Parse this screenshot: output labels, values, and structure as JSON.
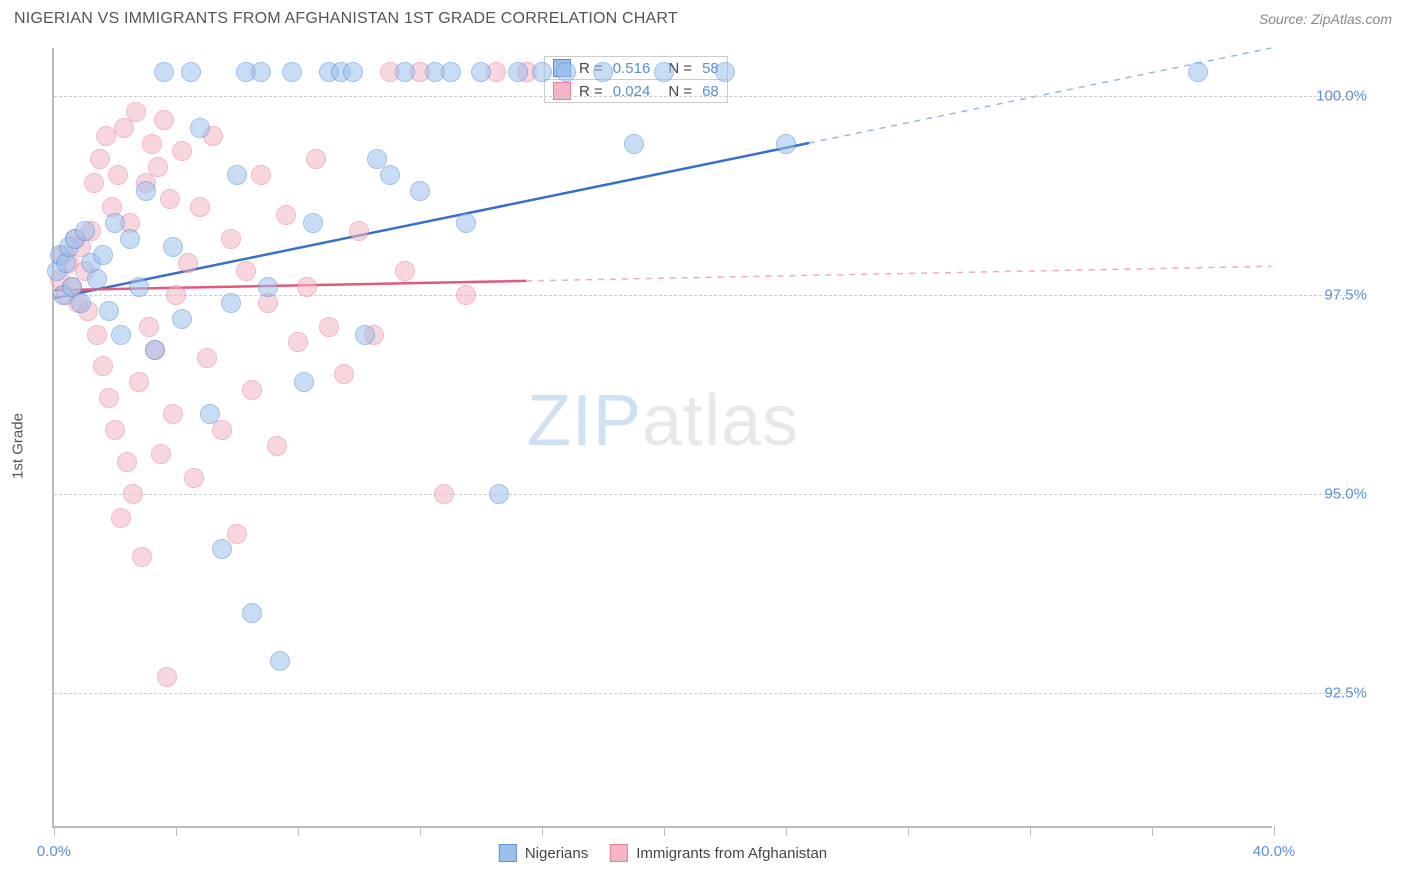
{
  "title": "NIGERIAN VS IMMIGRANTS FROM AFGHANISTAN 1ST GRADE CORRELATION CHART",
  "source": "Source: ZipAtlas.com",
  "ylabel": "1st Grade",
  "watermark_zip": "ZIP",
  "watermark_atlas": "atlas",
  "chart": {
    "type": "scatter",
    "background_color": "#ffffff",
    "grid_color": "#cccccc",
    "axis_color": "#bbbbbb",
    "tick_label_color": "#5b8fd6",
    "xlim": [
      0,
      40
    ],
    "ylim": [
      90.8,
      100.6
    ],
    "yticks": [
      92.5,
      95.0,
      97.5,
      100.0
    ],
    "ytick_labels": [
      "92.5%",
      "95.0%",
      "97.5%",
      "100.0%"
    ],
    "xtick_positions": [
      0,
      4,
      8,
      12,
      16,
      20,
      24,
      28,
      32,
      36,
      40
    ],
    "xtick_labels_shown": {
      "0": "0.0%",
      "40": "40.0%"
    },
    "marker_radius": 10,
    "marker_opacity": 0.55,
    "series": {
      "nigerians": {
        "label": "Nigerians",
        "color_fill": "#9cc0ec",
        "color_stroke": "#5b8fd6",
        "R": "0.516",
        "N": "58",
        "trend": {
          "x1": 0,
          "y1": 97.45,
          "x_solid_end": 24.8,
          "x2": 40,
          "y2": 100.6,
          "stroke": "#3a6fc9",
          "width": 2.5
        },
        "points": [
          [
            0.1,
            97.8
          ],
          [
            0.2,
            98.0
          ],
          [
            0.3,
            97.5
          ],
          [
            0.4,
            97.9
          ],
          [
            0.5,
            98.1
          ],
          [
            0.6,
            97.6
          ],
          [
            0.7,
            98.2
          ],
          [
            0.9,
            97.4
          ],
          [
            1.0,
            98.3
          ],
          [
            1.2,
            97.9
          ],
          [
            1.4,
            97.7
          ],
          [
            1.6,
            98.0
          ],
          [
            1.8,
            97.3
          ],
          [
            2.0,
            98.4
          ],
          [
            2.2,
            97.0
          ],
          [
            2.5,
            98.2
          ],
          [
            2.8,
            97.6
          ],
          [
            3.0,
            98.8
          ],
          [
            3.3,
            96.8
          ],
          [
            3.6,
            100.3
          ],
          [
            3.9,
            98.1
          ],
          [
            4.2,
            97.2
          ],
          [
            4.5,
            100.3
          ],
          [
            4.8,
            99.6
          ],
          [
            5.1,
            96.0
          ],
          [
            5.5,
            94.3
          ],
          [
            5.8,
            97.4
          ],
          [
            6.0,
            99.0
          ],
          [
            6.3,
            100.3
          ],
          [
            6.5,
            93.5
          ],
          [
            6.8,
            100.3
          ],
          [
            7.0,
            97.6
          ],
          [
            7.4,
            92.9
          ],
          [
            7.8,
            100.3
          ],
          [
            8.2,
            96.4
          ],
          [
            8.5,
            98.4
          ],
          [
            9.0,
            100.3
          ],
          [
            9.4,
            100.3
          ],
          [
            9.8,
            100.3
          ],
          [
            10.2,
            97.0
          ],
          [
            10.6,
            99.2
          ],
          [
            11.0,
            99.0
          ],
          [
            11.5,
            100.3
          ],
          [
            12.0,
            98.8
          ],
          [
            12.5,
            100.3
          ],
          [
            13.0,
            100.3
          ],
          [
            13.5,
            98.4
          ],
          [
            14.0,
            100.3
          ],
          [
            14.6,
            95.0
          ],
          [
            15.2,
            100.3
          ],
          [
            16.0,
            100.3
          ],
          [
            16.8,
            100.3
          ],
          [
            18.0,
            100.3
          ],
          [
            19.0,
            99.4
          ],
          [
            20.0,
            100.3
          ],
          [
            22.0,
            100.3
          ],
          [
            24.0,
            99.4
          ],
          [
            37.5,
            100.3
          ]
        ]
      },
      "afghanistan": {
        "label": "Immigrants from Afghanistan",
        "color_fill": "#f4b6c4",
        "color_stroke": "#e87f9a",
        "R": "0.024",
        "N": "68",
        "trend": {
          "x1": 0,
          "y1": 97.55,
          "x_solid_end": 15.5,
          "x2": 40,
          "y2": 97.85,
          "stroke": "#e05a7d",
          "width": 2.5
        },
        "points": [
          [
            0.2,
            97.7
          ],
          [
            0.3,
            98.0
          ],
          [
            0.4,
            97.5
          ],
          [
            0.5,
            97.9
          ],
          [
            0.6,
            97.6
          ],
          [
            0.7,
            98.2
          ],
          [
            0.8,
            97.4
          ],
          [
            0.9,
            98.1
          ],
          [
            1.0,
            97.8
          ],
          [
            1.1,
            97.3
          ],
          [
            1.2,
            98.3
          ],
          [
            1.3,
            98.9
          ],
          [
            1.4,
            97.0
          ],
          [
            1.5,
            99.2
          ],
          [
            1.6,
            96.6
          ],
          [
            1.7,
            99.5
          ],
          [
            1.8,
            96.2
          ],
          [
            1.9,
            98.6
          ],
          [
            2.0,
            95.8
          ],
          [
            2.1,
            99.0
          ],
          [
            2.2,
            94.7
          ],
          [
            2.3,
            99.6
          ],
          [
            2.4,
            95.4
          ],
          [
            2.5,
            98.4
          ],
          [
            2.6,
            95.0
          ],
          [
            2.7,
            99.8
          ],
          [
            2.8,
            96.4
          ],
          [
            2.9,
            94.2
          ],
          [
            3.0,
            98.9
          ],
          [
            3.1,
            97.1
          ],
          [
            3.2,
            99.4
          ],
          [
            3.3,
            96.8
          ],
          [
            3.4,
            99.1
          ],
          [
            3.5,
            95.5
          ],
          [
            3.6,
            99.7
          ],
          [
            3.7,
            92.7
          ],
          [
            3.8,
            98.7
          ],
          [
            3.9,
            96.0
          ],
          [
            4.0,
            97.5
          ],
          [
            4.2,
            99.3
          ],
          [
            4.4,
            97.9
          ],
          [
            4.6,
            95.2
          ],
          [
            4.8,
            98.6
          ],
          [
            5.0,
            96.7
          ],
          [
            5.2,
            99.5
          ],
          [
            5.5,
            95.8
          ],
          [
            5.8,
            98.2
          ],
          [
            6.0,
            94.5
          ],
          [
            6.3,
            97.8
          ],
          [
            6.5,
            96.3
          ],
          [
            6.8,
            99.0
          ],
          [
            7.0,
            97.4
          ],
          [
            7.3,
            95.6
          ],
          [
            7.6,
            98.5
          ],
          [
            8.0,
            96.9
          ],
          [
            8.3,
            97.6
          ],
          [
            8.6,
            99.2
          ],
          [
            9.0,
            97.1
          ],
          [
            9.5,
            96.5
          ],
          [
            10.0,
            98.3
          ],
          [
            10.5,
            97.0
          ],
          [
            11.0,
            100.3
          ],
          [
            11.5,
            97.8
          ],
          [
            12.0,
            100.3
          ],
          [
            12.8,
            95.0
          ],
          [
            13.5,
            97.5
          ],
          [
            14.5,
            100.3
          ],
          [
            15.5,
            100.3
          ]
        ]
      }
    }
  },
  "legend_r": {
    "rows": [
      {
        "swatch": "nigerians",
        "r_label": "R =",
        "r_val": "0.516",
        "n_label": "N =",
        "n_val": "58"
      },
      {
        "swatch": "afghanistan",
        "r_label": "R =",
        "r_val": "0.024",
        "n_label": "N =",
        "n_val": "68"
      }
    ]
  }
}
